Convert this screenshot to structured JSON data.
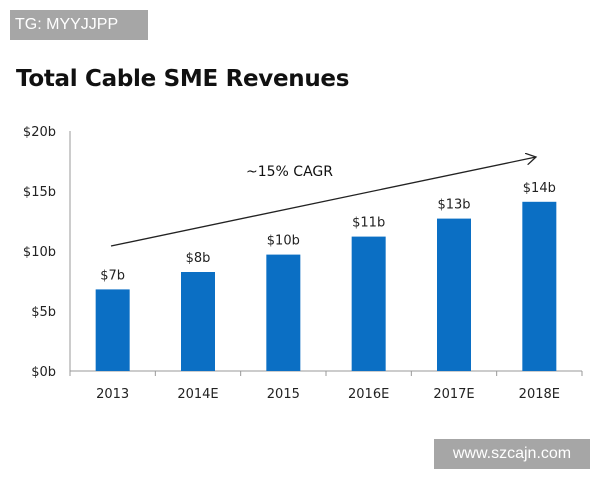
{
  "watermarks": {
    "top": "TG: MYYJJPP",
    "bottom": "www.szcajn.com"
  },
  "chart_data": {
    "type": "bar",
    "title": "Total Cable SME Revenues",
    "xlabel": "",
    "ylabel": "",
    "categories": [
      "2013",
      "2014E",
      "2015",
      "2016E",
      "2017E",
      "2018E"
    ],
    "values": [
      6.8,
      8.25,
      9.7,
      11.2,
      12.7,
      14.1
    ],
    "data_labels": [
      "$7b",
      "$8b",
      "$10b",
      "$11b",
      "$13b",
      "$14b"
    ],
    "ylim": [
      0,
      20
    ],
    "yticks": [
      0,
      5,
      10,
      15,
      20
    ],
    "ytick_labels": [
      "$0b",
      "$5b",
      "$10b",
      "$15b",
      "$20b"
    ],
    "grid": false,
    "legend": "none",
    "annotation": "~15% CAGR",
    "bar_color": "#0b6fc4"
  }
}
